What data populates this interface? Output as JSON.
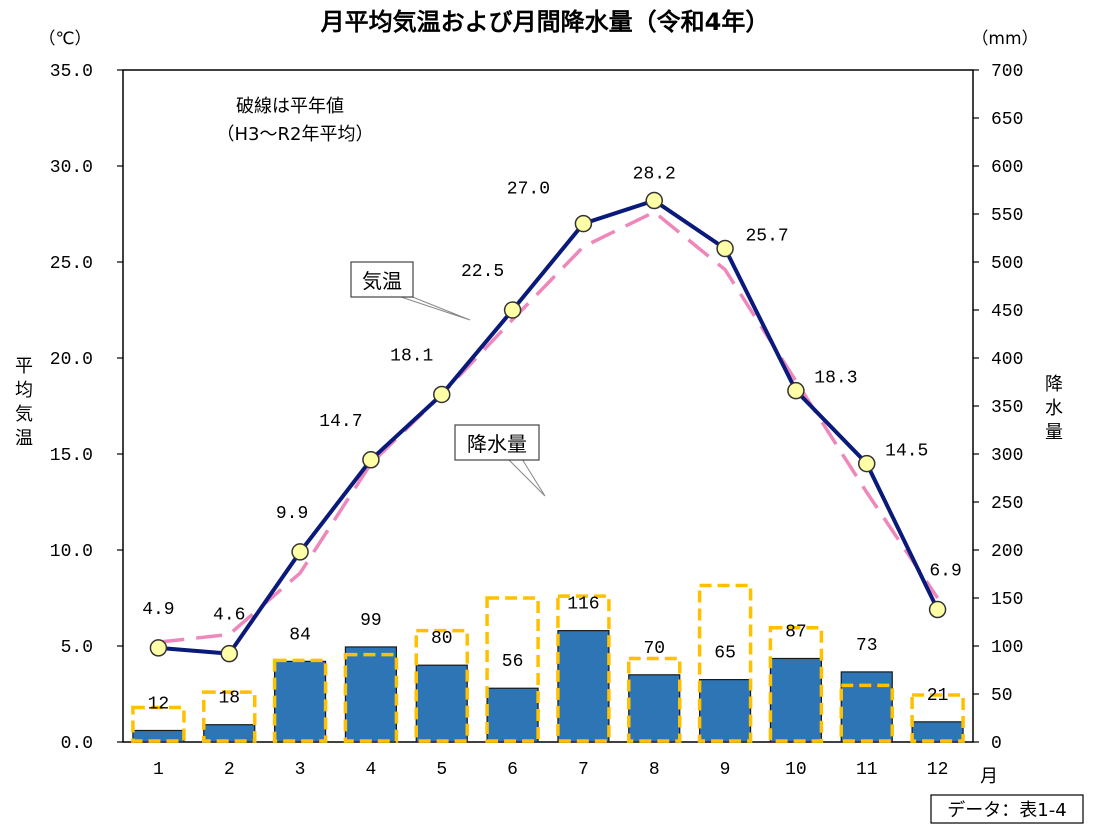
{
  "chart_data": {
    "type": "bar+line",
    "title": "月平均気温および月間降水量（令和4年）",
    "categories": [
      "1",
      "2",
      "3",
      "4",
      "5",
      "6",
      "7",
      "8",
      "9",
      "10",
      "11",
      "12"
    ],
    "x_unit": "月",
    "left_axis": {
      "unit": "（℃）",
      "label": "平均気温",
      "ylim": [
        0,
        35
      ],
      "ticks": [
        "0.0",
        "5.0",
        "10.0",
        "15.0",
        "20.0",
        "25.0",
        "30.0",
        "35.0"
      ]
    },
    "right_axis": {
      "unit": "（mm）",
      "label": "降水量",
      "ylim": [
        0,
        700
      ],
      "ticks": [
        "0",
        "50",
        "100",
        "150",
        "200",
        "250",
        "300",
        "350",
        "400",
        "450",
        "500",
        "550",
        "600",
        "650",
        "700"
      ]
    },
    "series": [
      {
        "name": "気温",
        "type": "line",
        "axis": "left",
        "color": "#0a1a7a",
        "marker_fill": "#ffffa8",
        "values": [
          4.9,
          4.6,
          9.9,
          14.7,
          18.1,
          22.5,
          27.0,
          28.2,
          25.7,
          18.3,
          14.5,
          6.9
        ],
        "labels": [
          "4.9",
          "4.6",
          "9.9",
          "14.7",
          "18.1",
          "22.5",
          "27.0",
          "28.2",
          "25.7",
          "18.3",
          "14.5",
          "6.9"
        ]
      },
      {
        "type": "line-dashed",
        "axis": "left",
        "color": "#ee88bb",
        "values": [
          5.2,
          5.6,
          8.8,
          14.5,
          18.1,
          22.0,
          25.8,
          27.6,
          24.6,
          18.8,
          13.0,
          7.5
        ]
      },
      {
        "name": "降水量",
        "type": "bar",
        "axis": "right",
        "color": "#2e75b6",
        "values": [
          12,
          18,
          84,
          99,
          80,
          56,
          116,
          70,
          65,
          87,
          73,
          21
        ],
        "labels": [
          "12",
          "18",
          "84",
          "99",
          "80",
          "56",
          "116",
          "70",
          "65",
          "87",
          "73",
          "21"
        ]
      },
      {
        "type": "bar-dashed",
        "axis": "right",
        "color": "#ffc000",
        "values": [
          36,
          52,
          85,
          91,
          116,
          150,
          152,
          87,
          163,
          119,
          59,
          49
        ]
      }
    ],
    "annotations": {
      "note_line1": "破線は平年値",
      "note_line2": "（H3～R2年平均）",
      "temp_callout": "気温",
      "rain_callout": "降水量"
    },
    "source": "データ：表1-4"
  }
}
